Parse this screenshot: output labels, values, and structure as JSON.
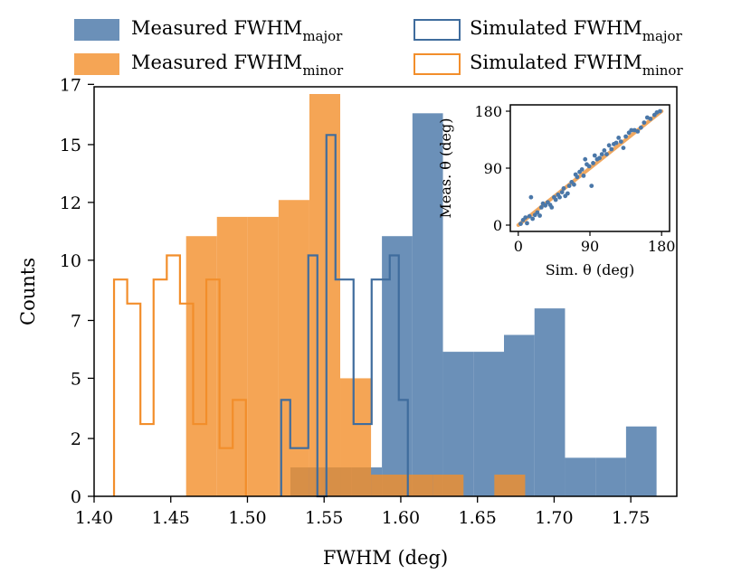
{
  "chart_data": [
    {
      "type": "histogram",
      "xlabel": "FWHM (deg)",
      "ylabel": "Counts",
      "xlim": [
        1.4,
        1.78
      ],
      "ylim": [
        0,
        17
      ],
      "xticks": [
        1.4,
        1.45,
        1.5,
        1.55,
        1.6,
        1.65,
        1.7,
        1.75
      ],
      "xtick_labels": [
        "1.40",
        "1.45",
        "1.50",
        "1.55",
        "1.60",
        "1.65",
        "1.70",
        "1.75"
      ],
      "yticks": [
        0,
        2,
        5,
        7,
        10,
        12,
        15,
        17
      ],
      "yticks_pos": [
        0,
        2.4,
        4.9,
        7.3,
        9.8,
        12.2,
        14.6,
        17.1
      ],
      "ytick_labels": [
        "0",
        "2",
        "5",
        "7",
        "10",
        "12",
        "15",
        "17"
      ],
      "legend_placement": "top (above plot)",
      "legend": [
        {
          "key": "meas_major",
          "base": "Measured FWHM",
          "sub": "major"
        },
        {
          "key": "meas_minor",
          "base": "Measured FWHM",
          "sub": "minor"
        },
        {
          "key": "sim_major",
          "base": "Simulated FWHM",
          "sub": "major"
        },
        {
          "key": "sim_minor",
          "base": "Simulated FWHM",
          "sub": "minor"
        }
      ],
      "series": [
        {
          "key": "meas_major",
          "name": "Measured FWHM major",
          "style": "filled",
          "color": "#4a77a8",
          "opacity": 0.82,
          "edges": [
            1.528,
            1.5479,
            1.5678,
            1.5877,
            1.6076,
            1.6275,
            1.6474,
            1.6673,
            1.6872,
            1.7071,
            1.727,
            1.7469,
            1.7668
          ],
          "counts": [
            1.2,
            1.2,
            1.2,
            10.8,
            15.9,
            6.0,
            6.0,
            6.7,
            7.8,
            1.6,
            1.6,
            2.9
          ]
        },
        {
          "key": "meas_minor",
          "name": "Measured FWHM minor",
          "style": "filled",
          "color": "#f28e2b",
          "opacity": 0.8,
          "edges": [
            1.46,
            1.4801,
            1.5002,
            1.5203,
            1.5404,
            1.5605,
            1.5806,
            1.6007,
            1.6208,
            1.6409,
            1.661,
            1.6811,
            1.7012
          ],
          "counts": [
            10.8,
            11.6,
            11.6,
            12.3,
            16.7,
            4.9,
            0.9,
            0.9,
            0.9,
            0.0,
            0.9,
            0.0
          ]
        },
        {
          "key": "sim_major",
          "name": "Simulated FWHM major",
          "style": "step",
          "color": "#3f6c9d",
          "edges": [
            1.522,
            1.5279,
            1.5338,
            1.5397,
            1.5456,
            1.5515,
            1.5574,
            1.5633,
            1.5692,
            1.5751,
            1.581,
            1.5869,
            1.5928,
            1.5987,
            1.6046
          ],
          "counts": [
            4.0,
            2.0,
            2.0,
            10.0,
            0.0,
            15.0,
            9.0,
            9.0,
            3.0,
            3.0,
            9.0,
            9.0,
            10.0,
            4.0
          ]
        },
        {
          "key": "sim_minor",
          "name": "Simulated FWHM minor",
          "style": "step",
          "color": "#f28e2b",
          "edges": [
            1.413,
            1.4216,
            1.4302,
            1.4388,
            1.4474,
            1.456,
            1.4646,
            1.4732,
            1.4818,
            1.4904,
            1.499
          ],
          "counts": [
            9.0,
            8.0,
            3.0,
            9.0,
            10.0,
            8.0,
            3.0,
            9.0,
            2.0,
            4.0
          ]
        }
      ]
    },
    {
      "type": "scatter",
      "name": "inset",
      "xlabel": "Sim. θ (deg)",
      "ylabel": "Meas. θ (deg)",
      "xlim": [
        -10,
        190
      ],
      "ylim": [
        -10,
        190
      ],
      "xticks": [
        0,
        90,
        180
      ],
      "yticks": [
        0,
        90,
        180
      ],
      "point_color": "#4a77a8",
      "line_color": "#f0a860",
      "fit_line": [
        [
          0,
          0
        ],
        [
          180,
          180
        ]
      ],
      "points": [
        [
          3,
          2
        ],
        [
          6,
          8
        ],
        [
          9,
          12
        ],
        [
          11,
          3
        ],
        [
          14,
          14
        ],
        [
          16,
          44
        ],
        [
          18,
          10
        ],
        [
          21,
          16
        ],
        [
          24,
          20
        ],
        [
          27,
          15
        ],
        [
          29,
          28
        ],
        [
          31,
          34
        ],
        [
          34,
          31
        ],
        [
          37,
          36
        ],
        [
          40,
          32
        ],
        [
          42,
          28
        ],
        [
          45,
          44
        ],
        [
          47,
          40
        ],
        [
          50,
          48
        ],
        [
          52,
          44
        ],
        [
          55,
          52
        ],
        [
          57,
          58
        ],
        [
          59,
          46
        ],
        [
          62,
          50
        ],
        [
          64,
          62
        ],
        [
          67,
          68
        ],
        [
          70,
          64
        ],
        [
          72,
          80
        ],
        [
          74,
          76
        ],
        [
          77,
          84
        ],
        [
          80,
          88
        ],
        [
          82,
          78
        ],
        [
          84,
          104
        ],
        [
          86,
          96
        ],
        [
          89,
          93
        ],
        [
          92,
          62
        ],
        [
          94,
          98
        ],
        [
          96,
          110
        ],
        [
          99,
          104
        ],
        [
          102,
          106
        ],
        [
          105,
          112
        ],
        [
          108,
          118
        ],
        [
          111,
          112
        ],
        [
          114,
          126
        ],
        [
          117,
          120
        ],
        [
          120,
          128
        ],
        [
          123,
          130
        ],
        [
          126,
          138
        ],
        [
          129,
          132
        ],
        [
          132,
          122
        ],
        [
          135,
          140
        ],
        [
          139,
          146
        ],
        [
          142,
          150
        ],
        [
          146,
          150
        ],
        [
          150,
          148
        ],
        [
          154,
          154
        ],
        [
          158,
          162
        ],
        [
          162,
          170
        ],
        [
          166,
          168
        ],
        [
          171,
          174
        ],
        [
          174,
          178
        ],
        [
          178,
          180
        ]
      ]
    }
  ]
}
